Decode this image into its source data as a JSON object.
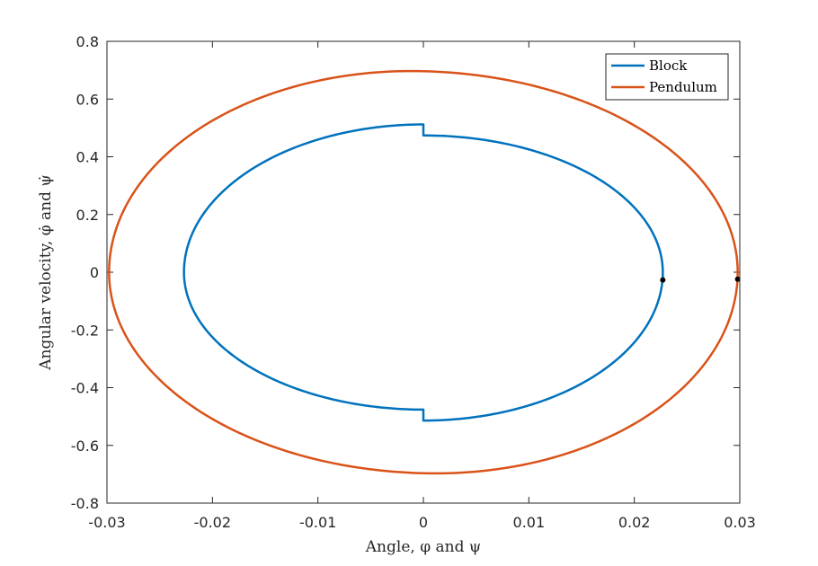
{
  "chart_data": {
    "type": "line",
    "xlabel": "Angle, φ and ψ",
    "ylabel": "Angular velocity, φ̇ and ψ̇",
    "xlim": [
      -0.03,
      0.03
    ],
    "ylim": [
      -0.8,
      0.8
    ],
    "x_ticks": [
      "-0.03",
      "-0.02",
      "-0.01",
      "0",
      "0.01",
      "0.02",
      "0.03"
    ],
    "y_ticks": [
      "0.8",
      "0.6",
      "0.4",
      "0.2",
      "0",
      "-0.2",
      "-0.4",
      "-0.6",
      "-0.8"
    ],
    "grid": false,
    "legend_position": "top-right",
    "series": [
      {
        "name": "Block",
        "color": "#0072BD",
        "a": 0.0227,
        "b_upper_left": 0.512,
        "b_upper_right": 0.474,
        "b_lower_left": 0.476,
        "b_lower_right": 0.514,
        "end_point": [
          0.0227,
          -0.027
        ]
      },
      {
        "name": "Pendulum",
        "color": "#D95319",
        "a": 0.0298,
        "peak_top": [
          -0.0012,
          0.697
        ],
        "peak_bottom": [
          0.0012,
          -0.697
        ],
        "end_point": [
          0.0298,
          -0.024
        ]
      }
    ]
  }
}
